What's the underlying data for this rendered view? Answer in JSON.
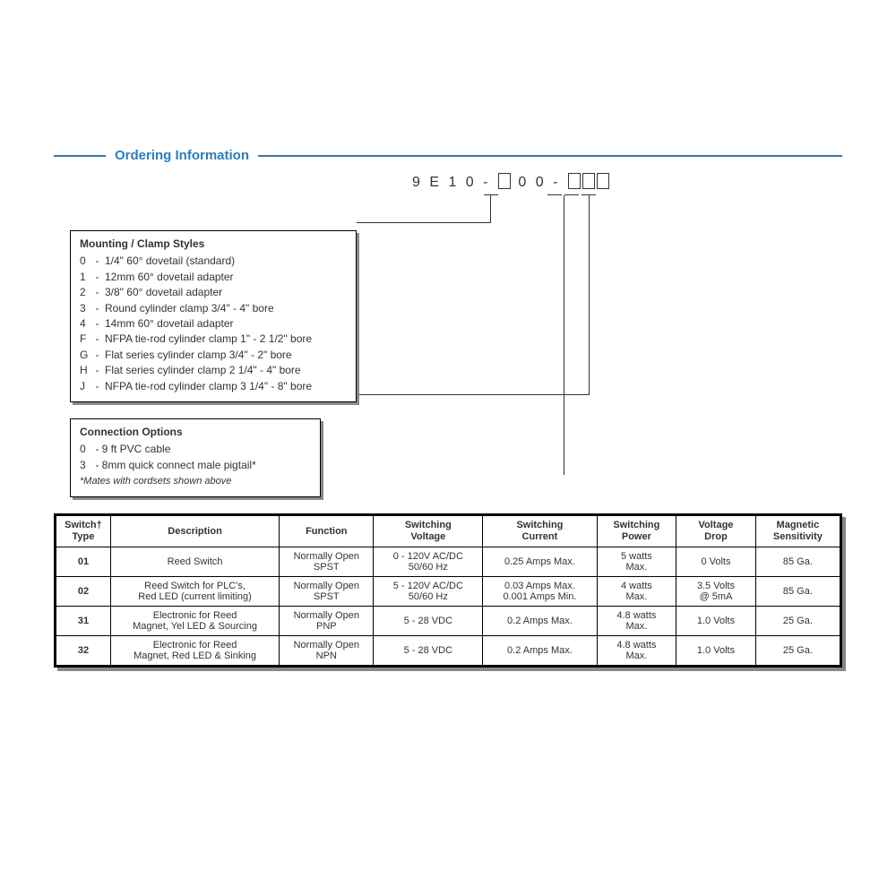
{
  "title": "Ordering Information",
  "partNumber": {
    "prefix": "9 E 1 0 -",
    "mid": "0 0 -"
  },
  "mounting": {
    "title": "Mounting / Clamp Styles",
    "items": [
      {
        "code": "0",
        "label": "1/4\" 60° dovetail (standard)"
      },
      {
        "code": "1",
        "label": "12mm 60° dovetail adapter"
      },
      {
        "code": "2",
        "label": "3/8\" 60° dovetail adapter"
      },
      {
        "code": "3",
        "label": "Round cylinder clamp 3/4\" - 4\" bore"
      },
      {
        "code": "4",
        "label": "14mm 60° dovetail adapter"
      },
      {
        "code": "F",
        "label": "NFPA tie-rod cylinder clamp 1\" - 2 1/2\" bore"
      },
      {
        "code": "G",
        "label": "Flat series cylinder clamp 3/4\" - 2\" bore"
      },
      {
        "code": "H",
        "label": "Flat series cylinder clamp 2 1/4\" - 4\" bore"
      },
      {
        "code": "J",
        "label": "NFPA tie-rod cylinder clamp 3 1/4\" - 8\" bore"
      }
    ]
  },
  "connection": {
    "title": "Connection Options",
    "items": [
      {
        "code": "0",
        "label": "9 ft PVC cable"
      },
      {
        "code": "3",
        "label": "8mm quick connect male pigtail*"
      }
    ],
    "note": "*Mates with cordsets shown above"
  },
  "table": {
    "headers": {
      "type": "Switch†\nType",
      "desc": "Description",
      "func": "Function",
      "volt": "Switching\nVoltage",
      "curr": "Switching\nCurrent",
      "pow": "Switching\nPower",
      "drop": "Voltage\nDrop",
      "sens": "Magnetic\nSensitivity"
    },
    "rows": [
      {
        "type": "01",
        "desc": "Reed Switch",
        "func": "Normally Open\nSPST",
        "volt": "0 - 120V AC/DC\n50/60 Hz",
        "curr": "0.25 Amps Max.",
        "pow": "5 watts\nMax.",
        "drop": "0 Volts",
        "sens": "85 Ga."
      },
      {
        "type": "02",
        "desc": "Reed Switch for PLC's,\nRed LED (current limiting)",
        "func": "Normally Open\nSPST",
        "volt": "5 - 120V AC/DC\n50/60 Hz",
        "curr": "0.03 Amps Max.\n0.001 Amps Min.",
        "pow": "4 watts\nMax.",
        "drop": "3.5 Volts\n@ 5mA",
        "sens": "85 Ga."
      },
      {
        "type": "31",
        "desc": "Electronic for Reed\nMagnet, Yel LED & Sourcing",
        "func": "Normally Open\nPNP",
        "volt": "5 - 28 VDC",
        "curr": "0.2 Amps Max.",
        "pow": "4.8 watts\nMax.",
        "drop": "1.0 Volts",
        "sens": "25 Ga."
      },
      {
        "type": "32",
        "desc": "Electronic for Reed\nMagnet, Red LED & Sinking",
        "func": "Normally Open\nNPN",
        "volt": "5 - 28 VDC",
        "curr": "0.2 Amps Max.",
        "pow": "4.8 watts\nMax.",
        "drop": "1.0 Volts",
        "sens": "25 Ga."
      }
    ]
  }
}
